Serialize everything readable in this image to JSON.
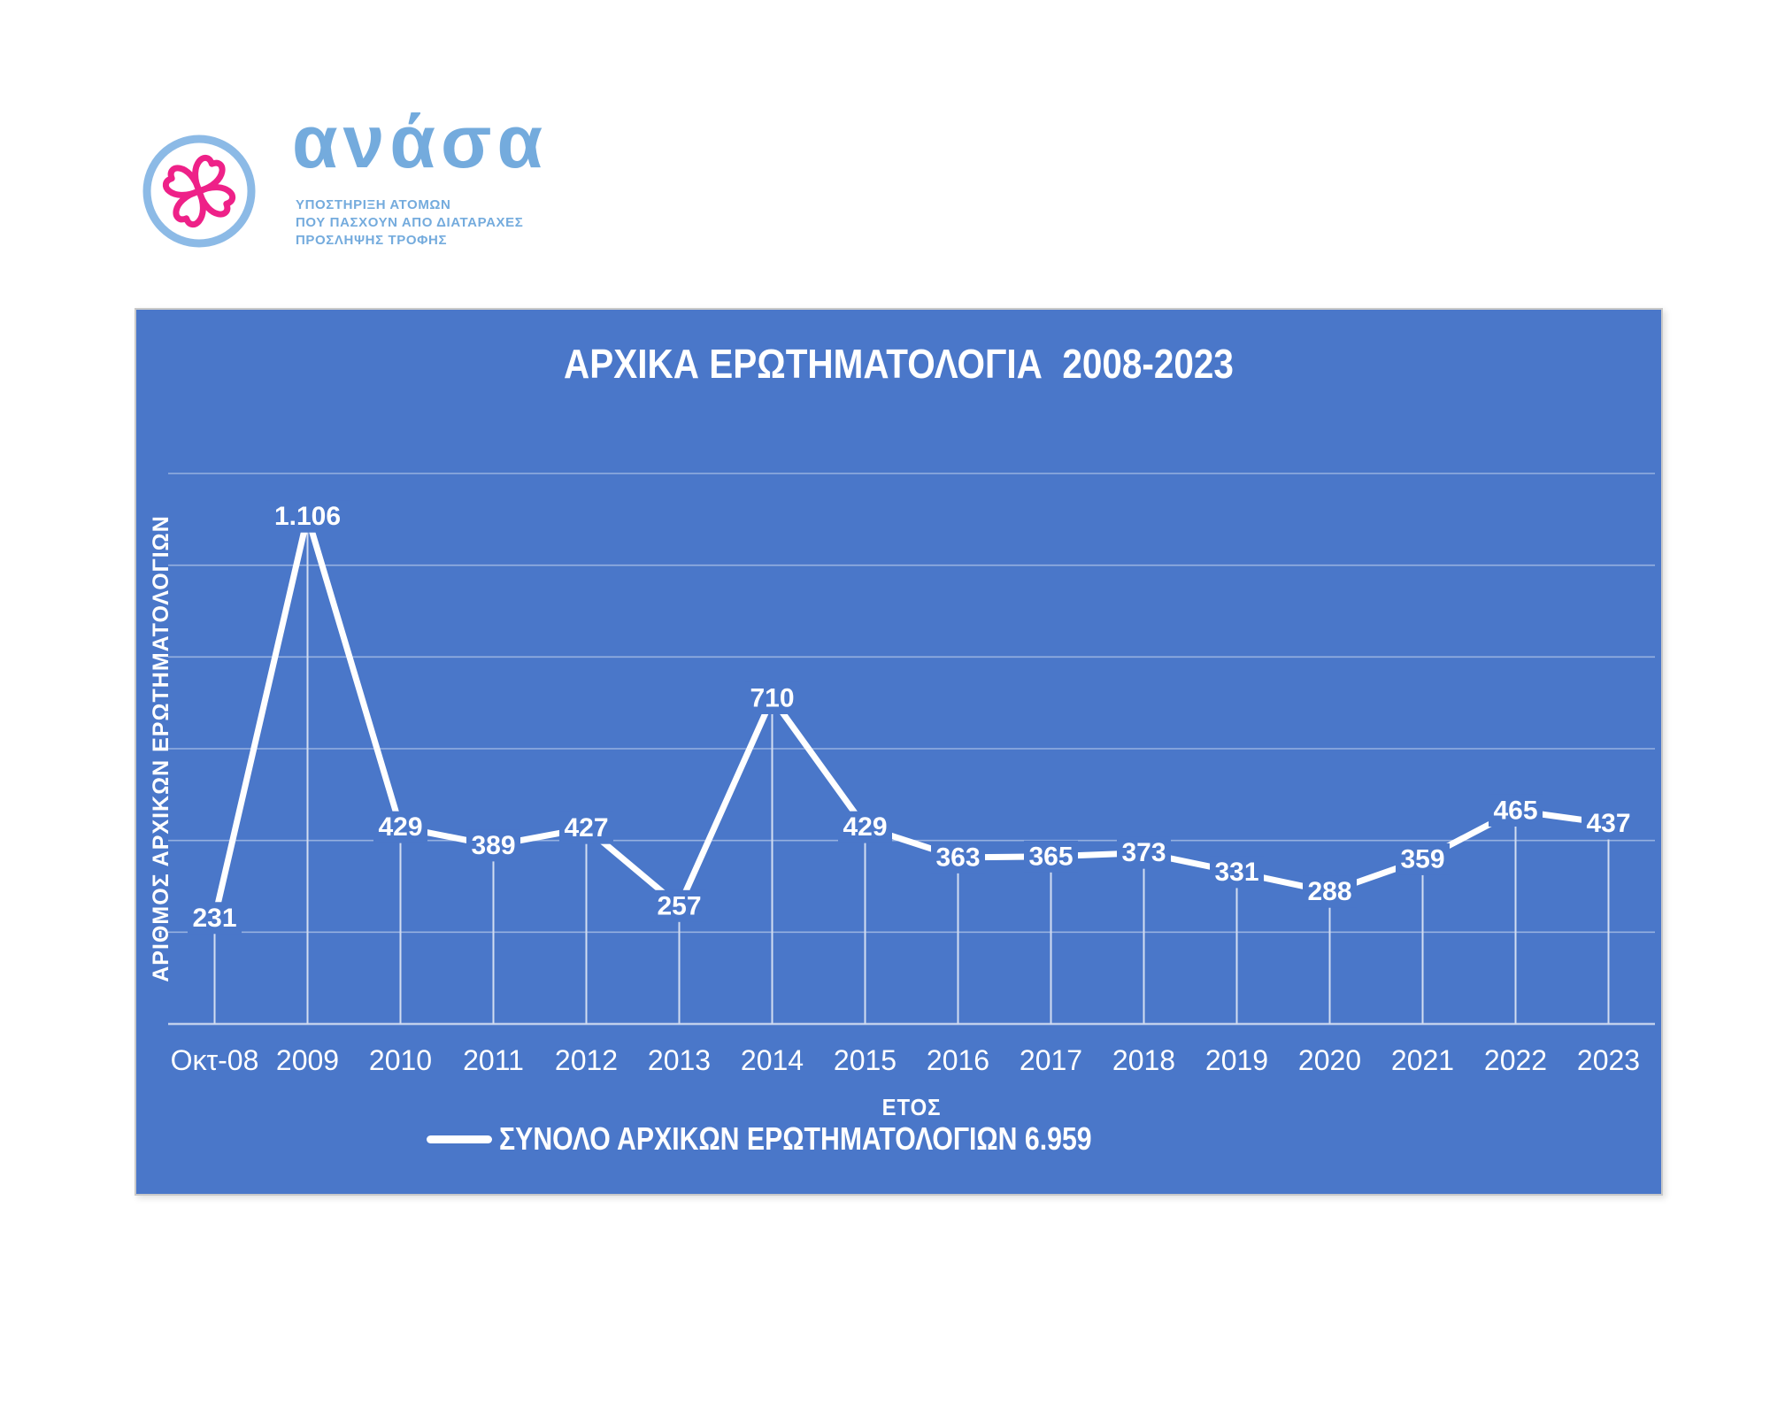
{
  "logo": {
    "brand": "ανάσα",
    "tagline_lines": [
      "ΥΠΟΣΤΗΡΙΞΗ ΑΤΟΜΩΝ",
      "ΠΟΥ ΠΑΣΧΟΥΝ ΑΠΟ ΔΙΑΤΑΡΑΧΕΣ",
      "ΠΡΟΣΛΗΨΗΣ ΤΡΟΦΗΣ"
    ],
    "circle_color": "#8CBAE6",
    "heart_color": "#EE2188",
    "text_color": "#74ABDD"
  },
  "chart_data": {
    "type": "line",
    "title": "ΑΡΧΙΚΑ ΕΡΩΤΗΜΑΤΟΛΟΓΙΑ  2008-2023",
    "xlabel": "ΕΤΟΣ",
    "ylabel": "ΑΡΙΘΜΟΣ ΑΡΧΙΚΩΝ ΕΡΩΤΗΜΑΤΟΛΟΓΙΩΝ",
    "legend": "ΣΥΝΟΛΟ ΑΡΧΙΚΩΝ ΕΡΩΤΗΜΑΤΟΛΟΓΙΩΝ 6.959",
    "total_display": "6.959",
    "categories": [
      "Οκτ-08",
      "2009",
      "2010",
      "2011",
      "2012",
      "2013",
      "2014",
      "2015",
      "2016",
      "2017",
      "2018",
      "2019",
      "2020",
      "2021",
      "2022",
      "2023"
    ],
    "values": [
      231,
      1106,
      429,
      389,
      427,
      257,
      710,
      429,
      363,
      365,
      373,
      331,
      288,
      359,
      465,
      437
    ],
    "value_labels": [
      "231",
      "1.106",
      "429",
      "389",
      "427",
      "257",
      "710",
      "429",
      "363",
      "365",
      "373",
      "331",
      "288",
      "359",
      "465",
      "437"
    ],
    "ylim": [
      0,
      1200
    ],
    "grid_step": 200,
    "grid": true,
    "legend_position": "bottom",
    "label_position": "center",
    "colors": {
      "chart_bg": "#4A77C9",
      "series_line": "#FFFFFF",
      "gridline": "#96B0E0",
      "axis_line": "#C0CFEC",
      "drop_line": "#D2DDF1",
      "label_text": "#FFFFFF"
    }
  }
}
